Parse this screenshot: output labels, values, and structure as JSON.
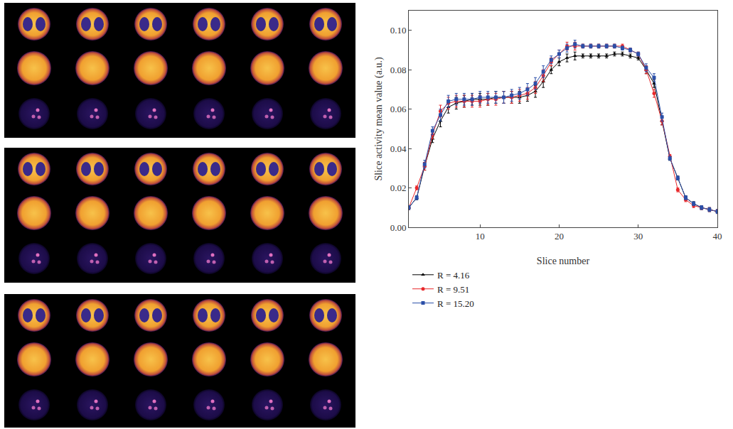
{
  "chart_data": {
    "type": "line",
    "x_label": "Slice number",
    "y_label": "Slice activity mean value (a.u.)",
    "x": [
      1,
      2,
      3,
      4,
      5,
      6,
      7,
      8,
      9,
      10,
      11,
      12,
      13,
      14,
      15,
      16,
      17,
      18,
      19,
      20,
      21,
      22,
      23,
      24,
      25,
      26,
      27,
      28,
      29,
      30,
      31,
      32,
      33,
      34,
      35,
      36,
      37,
      38,
      39,
      40
    ],
    "xlim": [
      1,
      40
    ],
    "xticks": [
      10,
      20,
      30,
      40
    ],
    "ylim": [
      0,
      0.11
    ],
    "yticks": [
      {
        "value": 0,
        "label": "0.00"
      },
      {
        "value": 0.02,
        "label": "0.02"
      },
      {
        "value": 0.04,
        "label": "0.04"
      },
      {
        "value": 0.06,
        "label": "0.06"
      },
      {
        "value": 0.08,
        "label": "0.08"
      },
      {
        "value": 0.1,
        "label": "0.10"
      }
    ],
    "grid": false,
    "legend": "bottom",
    "series": [
      {
        "name": "R = 4.16",
        "color": "#000000",
        "marker": "triangle-up",
        "values": [
          0.01,
          0.015,
          0.031,
          0.045,
          0.054,
          0.061,
          0.063,
          0.064,
          0.065,
          0.065,
          0.065,
          0.066,
          0.066,
          0.066,
          0.066,
          0.067,
          0.069,
          0.074,
          0.08,
          0.084,
          0.086,
          0.087,
          0.087,
          0.087,
          0.087,
          0.087,
          0.088,
          0.088,
          0.087,
          0.086,
          0.08,
          0.073,
          0.054,
          0.035,
          0.025,
          0.015,
          0.012,
          0.01,
          0.009,
          0.008
        ],
        "errors": [
          0.001,
          0.001,
          0.002,
          0.002,
          0.003,
          0.003,
          0.003,
          0.003,
          0.003,
          0.003,
          0.003,
          0.003,
          0.003,
          0.003,
          0.003,
          0.003,
          0.003,
          0.003,
          0.002,
          0.002,
          0.002,
          0.002,
          0.001,
          0.001,
          0.001,
          0.001,
          0.001,
          0.001,
          0.001,
          0.001,
          0.002,
          0.002,
          0.002,
          0.001,
          0.001,
          0.001,
          0.001,
          0.001,
          0.001,
          0.001
        ]
      },
      {
        "name": "R = 9.51",
        "color": "#e8282b",
        "marker": "circle",
        "values": [
          0.01,
          0.02,
          0.031,
          0.047,
          0.059,
          0.063,
          0.064,
          0.064,
          0.064,
          0.064,
          0.065,
          0.065,
          0.066,
          0.066,
          0.067,
          0.068,
          0.071,
          0.077,
          0.084,
          0.088,
          0.092,
          0.092,
          0.092,
          0.092,
          0.092,
          0.092,
          0.092,
          0.092,
          0.09,
          0.088,
          0.08,
          0.068,
          0.054,
          0.036,
          0.019,
          0.014,
          0.011,
          0.01,
          0.009,
          0.008
        ],
        "errors": [
          0.001,
          0.001,
          0.002,
          0.002,
          0.003,
          0.003,
          0.003,
          0.003,
          0.003,
          0.003,
          0.003,
          0.003,
          0.003,
          0.003,
          0.003,
          0.003,
          0.003,
          0.003,
          0.002,
          0.002,
          0.002,
          0.002,
          0.001,
          0.001,
          0.001,
          0.001,
          0.001,
          0.001,
          0.001,
          0.001,
          0.002,
          0.002,
          0.002,
          0.001,
          0.001,
          0.001,
          0.001,
          0.001,
          0.001,
          0.001
        ]
      },
      {
        "name": "R = 15.20",
        "color": "#2b4fa8",
        "marker": "square",
        "values": [
          0.01,
          0.015,
          0.032,
          0.049,
          0.057,
          0.064,
          0.065,
          0.065,
          0.065,
          0.066,
          0.066,
          0.066,
          0.066,
          0.067,
          0.068,
          0.07,
          0.073,
          0.079,
          0.085,
          0.088,
          0.091,
          0.093,
          0.092,
          0.092,
          0.092,
          0.092,
          0.092,
          0.091,
          0.09,
          0.088,
          0.081,
          0.076,
          0.056,
          0.035,
          0.025,
          0.015,
          0.012,
          0.01,
          0.009,
          0.008
        ],
        "errors": [
          0.001,
          0.001,
          0.002,
          0.002,
          0.003,
          0.003,
          0.003,
          0.003,
          0.003,
          0.003,
          0.003,
          0.003,
          0.003,
          0.003,
          0.003,
          0.003,
          0.003,
          0.003,
          0.002,
          0.002,
          0.002,
          0.002,
          0.001,
          0.001,
          0.001,
          0.001,
          0.001,
          0.001,
          0.001,
          0.001,
          0.002,
          0.002,
          0.002,
          0.001,
          0.001,
          0.001,
          0.001,
          0.001,
          0.001,
          0.001
        ]
      }
    ]
  }
}
